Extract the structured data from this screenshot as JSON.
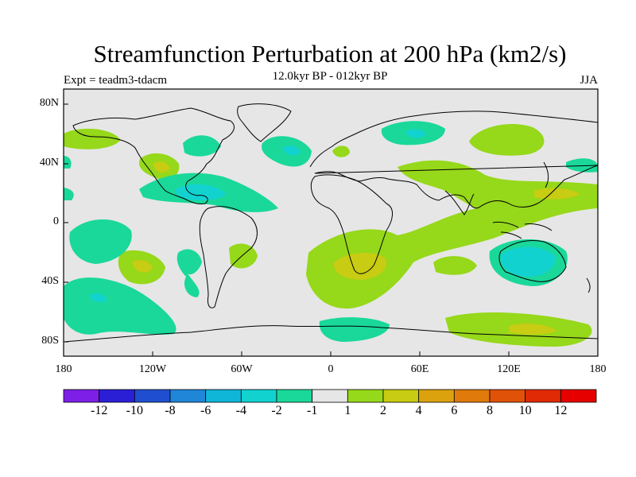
{
  "title": "Streamfunction Perturbation at 200 hPa (km2/s)",
  "subtitle": "12.0kyr BP - 012kyr BP",
  "experiment": "Expt = teadm3-tdacm",
  "season": "JJA",
  "axes": {
    "y_ticks": [
      "80N",
      "40N",
      "0",
      "40S",
      "80S"
    ],
    "x_ticks": [
      "180",
      "120W",
      "60W",
      "0",
      "60E",
      "120E",
      "180"
    ]
  },
  "colorbar": {
    "labels": [
      "-12",
      "-10",
      "-8",
      "-6",
      "-4",
      "-2",
      "-1",
      "1",
      "2",
      "4",
      "6",
      "8",
      "10",
      "12"
    ],
    "colors": [
      "#7d1fe6",
      "#2b1fd6",
      "#1f4fd0",
      "#1f86d8",
      "#10b6d8",
      "#12d2d0",
      "#1ad89a",
      "#e6e6e6",
      "#96d81a",
      "#c8cc12",
      "#dca20e",
      "#e07a0a",
      "#e05208",
      "#e02a06",
      "#e60000"
    ]
  },
  "fill_colors": {
    "background": "#e6e6e6",
    "neg_1_2": "#1ad89a",
    "neg_2_4": "#12d2d0",
    "neg_4_6": "#10b6d8",
    "pos_1_2": "#96d81a",
    "pos_2_4": "#c8cc12",
    "pos_4_6": "#dca20e"
  }
}
